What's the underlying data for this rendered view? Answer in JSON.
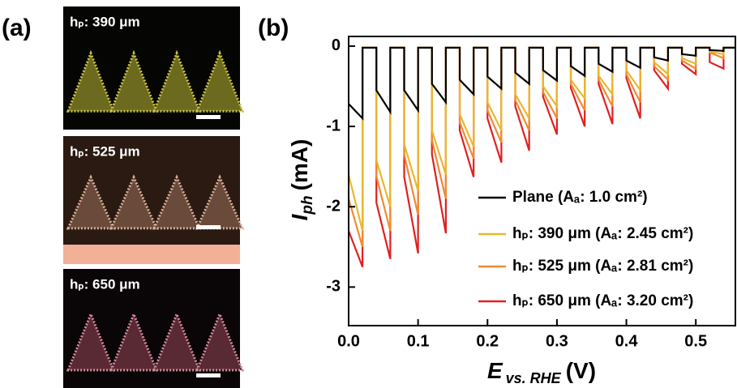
{
  "panels": {
    "a": "(a)",
    "b": "(b)",
    "images": [
      {
        "label": "hₚ: 390 μm"
      },
      {
        "label": "hₚ: 525 μm"
      },
      {
        "label": "hₚ: 650 μm"
      }
    ]
  },
  "chart_data": {
    "type": "line",
    "xlabel": {
      "symbol": "E",
      "subscript": "vs. RHE",
      "unit": "(V)"
    },
    "ylabel": {
      "symbol": "I",
      "subscript": "ph",
      "unit": "(mA)"
    },
    "xlim": [
      0,
      0.557
    ],
    "ylim": [
      -3.48,
      0.12
    ],
    "xticks": [
      {
        "value": 0,
        "label": "0.0"
      },
      0.1,
      0.2,
      0.3,
      0.4,
      0.5
    ],
    "yticks": [
      0,
      -1,
      -2,
      -3
    ],
    "x": [
      0,
      0.02,
      0.02,
      0.04,
      0.04,
      0.06,
      0.06,
      0.08,
      0.08,
      0.1,
      0.1,
      0.12,
      0.12,
      0.14,
      0.14,
      0.16,
      0.16,
      0.18,
      0.18,
      0.2,
      0.2,
      0.22,
      0.22,
      0.24,
      0.24,
      0.26,
      0.26,
      0.28,
      0.28,
      0.3,
      0.3,
      0.32,
      0.32,
      0.34,
      0.34,
      0.36,
      0.36,
      0.38,
      0.38,
      0.4,
      0.4,
      0.42,
      0.42,
      0.44,
      0.44,
      0.46,
      0.46,
      0.48,
      0.48,
      0.5,
      0.5,
      0.52,
      0.52,
      0.54,
      0.54,
      0.557
    ],
    "series": [
      {
        "name": "hₚ: 650 μm (Aₐ: 3.20 cm²)",
        "color": "#e02020",
        "values": [
          -2.3,
          -2.75,
          -0.02,
          -0.02,
          -1.95,
          -2.65,
          -0.02,
          -0.02,
          -1.63,
          -2.58,
          -0.02,
          -0.02,
          -1.35,
          -2.33,
          -0.02,
          -0.02,
          -1.05,
          -1.63,
          -0.02,
          -0.02,
          -0.9,
          -1.45,
          -0.02,
          -0.02,
          -0.75,
          -1.3,
          -0.02,
          -0.02,
          -0.63,
          -1.1,
          -0.02,
          -0.02,
          -0.52,
          -1.0,
          -0.02,
          -0.02,
          -0.47,
          -0.97,
          -0.02,
          -0.02,
          -0.4,
          -0.9,
          -0.02,
          -0.02,
          -0.3,
          -0.53,
          -0.02,
          -0.02,
          -0.22,
          -0.35,
          -0.02,
          -0.02,
          -0.2,
          -0.28,
          -0.02,
          -0.02
        ]
      },
      {
        "name": "hₚ: 525 μm (Aₐ: 2.81 cm²)",
        "color": "#f08a30",
        "values": [
          -1.9,
          -2.5,
          -0.02,
          -0.02,
          -1.62,
          -2.3,
          -0.02,
          -0.02,
          -1.35,
          -2.1,
          -0.02,
          -0.02,
          -1.17,
          -1.9,
          -0.02,
          -0.02,
          -0.95,
          -1.4,
          -0.02,
          -0.02,
          -0.8,
          -1.2,
          -0.02,
          -0.02,
          -0.67,
          -1.05,
          -0.02,
          -0.02,
          -0.57,
          -0.9,
          -0.02,
          -0.02,
          -0.47,
          -0.8,
          -0.02,
          -0.02,
          -0.42,
          -0.75,
          -0.02,
          -0.02,
          -0.35,
          -0.7,
          -0.02,
          -0.02,
          -0.25,
          -0.42,
          -0.02,
          -0.02,
          -0.18,
          -0.28,
          -0.02,
          -0.02,
          -0.08,
          -0.15,
          -0.02,
          -0.02
        ]
      },
      {
        "name": "hₚ: 390 μm (Aₐ: 2.45 cm²)",
        "color": "#e8b830",
        "values": [
          -1.6,
          -2.3,
          -0.02,
          -0.02,
          -1.42,
          -2.0,
          -0.02,
          -0.02,
          -1.22,
          -1.8,
          -0.02,
          -0.02,
          -1.05,
          -1.6,
          -0.02,
          -0.02,
          -0.85,
          -1.25,
          -0.02,
          -0.02,
          -0.7,
          -1.05,
          -0.02,
          -0.02,
          -0.6,
          -0.9,
          -0.02,
          -0.02,
          -0.5,
          -0.75,
          -0.02,
          -0.02,
          -0.42,
          -0.65,
          -0.02,
          -0.02,
          -0.37,
          -0.6,
          -0.02,
          -0.02,
          -0.3,
          -0.55,
          -0.02,
          -0.02,
          -0.2,
          -0.35,
          -0.02,
          -0.02,
          -0.15,
          -0.22,
          -0.02,
          -0.02,
          -0.07,
          -0.1,
          -0.02,
          -0.02
        ]
      },
      {
        "name": "Plane (Aₐ: 1.0 cm²)",
        "color": "#000000",
        "values": [
          -0.72,
          -0.9,
          -0.02,
          -0.02,
          -0.55,
          -0.82,
          -0.02,
          -0.02,
          -0.55,
          -0.8,
          -0.02,
          -0.02,
          -0.47,
          -0.7,
          -0.02,
          -0.02,
          -0.42,
          -0.6,
          -0.02,
          -0.02,
          -0.38,
          -0.53,
          -0.02,
          -0.02,
          -0.33,
          -0.47,
          -0.02,
          -0.02,
          -0.3,
          -0.43,
          -0.02,
          -0.02,
          -0.25,
          -0.37,
          -0.02,
          -0.02,
          -0.22,
          -0.32,
          -0.02,
          -0.02,
          -0.18,
          -0.27,
          -0.02,
          -0.02,
          -0.14,
          -0.18,
          -0.02,
          -0.02,
          -0.1,
          -0.12,
          -0.02,
          -0.02,
          -0.05,
          -0.06,
          -0.02,
          -0.02
        ]
      }
    ]
  }
}
